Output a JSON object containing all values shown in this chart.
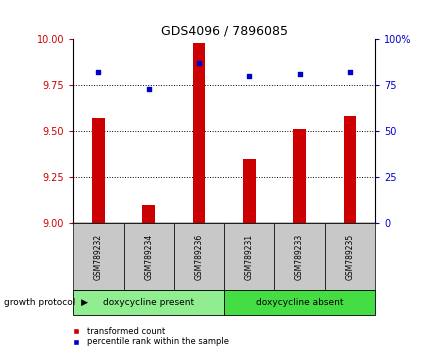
{
  "title": "GDS4096 / 7896085",
  "samples": [
    "GSM789232",
    "GSM789234",
    "GSM789236",
    "GSM789231",
    "GSM789233",
    "GSM789235"
  ],
  "red_values": [
    9.57,
    9.1,
    9.98,
    9.35,
    9.51,
    9.58
  ],
  "blue_values": [
    82,
    73,
    87,
    80,
    81,
    82
  ],
  "left_ylim": [
    9.0,
    10.0
  ],
  "right_ylim": [
    0,
    100
  ],
  "left_yticks": [
    9.0,
    9.25,
    9.5,
    9.75,
    10.0
  ],
  "right_yticks": [
    0,
    25,
    50,
    75,
    100
  ],
  "group1_label": "doxycycline present",
  "group2_label": "doxycycline absent",
  "group1_indices": [
    0,
    1,
    2
  ],
  "group2_indices": [
    3,
    4,
    5
  ],
  "protocol_label": "growth protocol",
  "legend_red": "transformed count",
  "legend_blue": "percentile rank within the sample",
  "bar_color": "#cc0000",
  "dot_color": "#0000cc",
  "group1_color": "#90ee90",
  "group2_color": "#44dd44",
  "tick_label_bg": "#c8c8c8",
  "title_color": "#000000",
  "left_axis_color": "#cc0000",
  "right_axis_color": "#0000cc"
}
